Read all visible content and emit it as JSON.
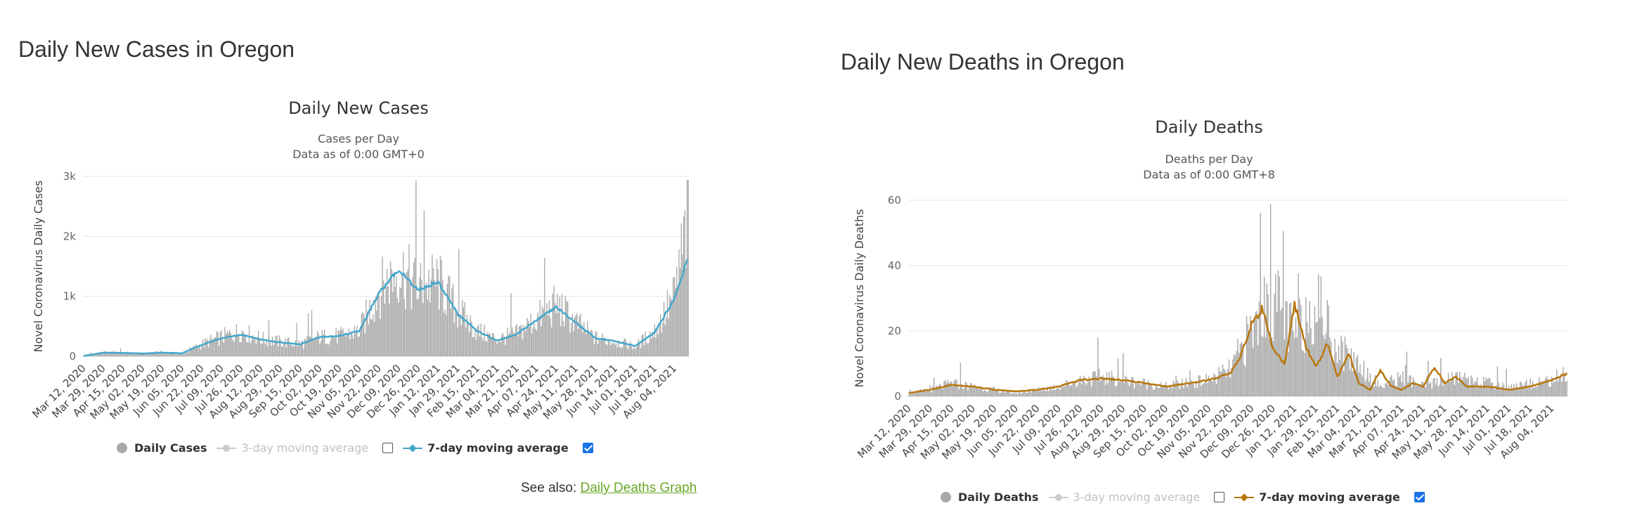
{
  "cases_panel": {
    "heading": "Daily New Cases in Oregon",
    "see_also_prefix": "See also:",
    "see_also_link": "Daily Deaths Graph",
    "legend": {
      "daily": "Daily Cases",
      "ma3": "3-day moving average",
      "ma7": "7-day moving average",
      "ma3_checked": false,
      "ma7_checked": true
    }
  },
  "deaths_panel": {
    "heading": "Daily New Deaths in Oregon",
    "legend": {
      "daily": "Daily Deaths",
      "ma3": "3-day moving average",
      "ma7": "7-day moving average",
      "ma3_checked": false,
      "ma7_checked": true
    }
  },
  "colors": {
    "bar": "#a8a8a8",
    "cases_line": "#44a7cb",
    "deaths_line": "#b8770e",
    "legend_disabled": "#cccccc",
    "grid": "#e6e6e6",
    "link": "#69a825"
  },
  "chart_data": [
    {
      "type": "bar",
      "title": "Daily New Cases",
      "subtitle": [
        "Cases per Day",
        "Data as of 0:00 GMT+0"
      ],
      "ylabel": "Novel Coronavirus Daily Cases",
      "xlabel": "",
      "ylim": [
        0,
        3000
      ],
      "yticks": [
        0,
        1000,
        2000,
        3000
      ],
      "ytick_labels": [
        "0",
        "1k",
        "2k",
        "3k"
      ],
      "grid": true,
      "legend_position": "bottom",
      "x_tick_labels": [
        "Mar 12, 2020",
        "Mar 29, 2020",
        "Apr 15, 2020",
        "May 02, 2020",
        "May 19, 2020",
        "Jun 05, 2020",
        "Jun 22, 2020",
        "Jul 09, 2020",
        "Jul 26, 2020",
        "Aug 12, 2020",
        "Aug 29, 2020",
        "Sep 15, 2020",
        "Oct 02, 2020",
        "Oct 19, 2020",
        "Nov 05, 2020",
        "Nov 22, 2020",
        "Dec 09, 2020",
        "Dec 26, 2020",
        "Jan 12, 2021",
        "Jan 29, 2021",
        "Feb 15, 2021",
        "Mar 04, 2021",
        "Mar 21, 2021",
        "Apr 07, 2021",
        "Apr 24, 2021",
        "May 11, 2021",
        "May 28, 2021",
        "Jun 14, 2021",
        "Jul 01, 2021",
        "Jul 18, 2021",
        "Aug 04, 2021"
      ],
      "series": [
        {
          "name": "Daily Cases",
          "kind": "bar",
          "anchors": [
            [
              0,
              5
            ],
            [
              17,
              60
            ],
            [
              34,
              55
            ],
            [
              51,
              45
            ],
            [
              68,
              65
            ],
            [
              85,
              45
            ],
            [
              102,
              200
            ],
            [
              119,
              320
            ],
            [
              136,
              420
            ],
            [
              153,
              290
            ],
            [
              170,
              240
            ],
            [
              187,
              210
            ],
            [
              204,
              320
            ],
            [
              221,
              340
            ],
            [
              238,
              420
            ],
            [
              255,
              1100
            ],
            [
              272,
              1450
            ],
            [
              289,
              1150
            ],
            [
              306,
              1250
            ],
            [
              323,
              750
            ],
            [
              340,
              420
            ],
            [
              357,
              280
            ],
            [
              374,
              380
            ],
            [
              391,
              620
            ],
            [
              408,
              850
            ],
            [
              425,
              560
            ],
            [
              442,
              300
            ],
            [
              459,
              250
            ],
            [
              476,
              160
            ],
            [
              493,
              420
            ],
            [
              510,
              1000
            ],
            [
              522,
              2300
            ]
          ]
        },
        {
          "name": "3-day moving average",
          "kind": "line",
          "visible": false,
          "values": []
        },
        {
          "name": "7-day moving average",
          "kind": "line",
          "anchors": [
            [
              0,
              5
            ],
            [
              17,
              60
            ],
            [
              34,
              55
            ],
            [
              51,
              45
            ],
            [
              68,
              60
            ],
            [
              85,
              50
            ],
            [
              102,
              190
            ],
            [
              119,
              300
            ],
            [
              136,
              360
            ],
            [
              153,
              280
            ],
            [
              170,
              230
            ],
            [
              187,
              200
            ],
            [
              204,
              320
            ],
            [
              221,
              340
            ],
            [
              238,
              420
            ],
            [
              255,
              1050
            ],
            [
              272,
              1450
            ],
            [
              289,
              1100
            ],
            [
              306,
              1250
            ],
            [
              323,
              700
            ],
            [
              340,
              420
            ],
            [
              357,
              260
            ],
            [
              374,
              370
            ],
            [
              391,
              600
            ],
            [
              408,
              820
            ],
            [
              425,
              560
            ],
            [
              442,
              300
            ],
            [
              459,
              250
            ],
            [
              476,
              170
            ],
            [
              493,
              400
            ],
            [
              510,
              960
            ],
            [
              522,
              1650
            ]
          ]
        }
      ]
    },
    {
      "type": "bar",
      "title": "Daily Deaths",
      "subtitle": [
        "Deaths per Day",
        "Data as of 0:00 GMT+8"
      ],
      "ylabel": "Novel Coronavirus Daily Deaths",
      "xlabel": "",
      "ylim": [
        0,
        60
      ],
      "yticks": [
        0,
        20,
        40,
        60
      ],
      "ytick_labels": [
        "0",
        "20",
        "40",
        "60"
      ],
      "grid": true,
      "legend_position": "bottom",
      "x_tick_labels": [
        "Mar 12, 2020",
        "Mar 29, 2020",
        "Apr 15, 2020",
        "May 02, 2020",
        "May 19, 2020",
        "Jun 05, 2020",
        "Jun 22, 2020",
        "Jul 09, 2020",
        "Jul 26, 2020",
        "Aug 12, 2020",
        "Aug 29, 2020",
        "Sep 15, 2020",
        "Oct 02, 2020",
        "Oct 19, 2020",
        "Nov 05, 2020",
        "Nov 22, 2020",
        "Dec 09, 2020",
        "Dec 26, 2020",
        "Jan 12, 2021",
        "Jan 29, 2021",
        "Feb 15, 2021",
        "Mar 04, 2021",
        "Mar 21, 2021",
        "Apr 07, 2021",
        "Apr 24, 2021",
        "May 11, 2021",
        "May 28, 2021",
        "Jun 14, 2021",
        "Jul 01, 2021",
        "Jul 18, 2021",
        "Aug 04, 2021"
      ],
      "series": [
        {
          "name": "Daily Deaths",
          "kind": "bar",
          "anchors": [
            [
              0,
              1
            ],
            [
              17,
              2
            ],
            [
              34,
              4
            ],
            [
              51,
              3
            ],
            [
              68,
              2
            ],
            [
              85,
              1
            ],
            [
              102,
              2
            ],
            [
              119,
              3
            ],
            [
              136,
              5
            ],
            [
              153,
              6
            ],
            [
              170,
              5
            ],
            [
              187,
              4
            ],
            [
              204,
              3
            ],
            [
              221,
              4
            ],
            [
              238,
              5
            ],
            [
              255,
              8
            ],
            [
              272,
              20
            ],
            [
              289,
              30
            ],
            [
              306,
              18
            ],
            [
              323,
              30
            ],
            [
              340,
              15
            ],
            [
              357,
              10
            ],
            [
              374,
              3
            ],
            [
              391,
              6
            ],
            [
              408,
              3
            ],
            [
              425,
              5
            ],
            [
              442,
              6
            ],
            [
              459,
              4
            ],
            [
              476,
              3
            ],
            [
              493,
              4
            ],
            [
              510,
              5
            ],
            [
              522,
              7
            ]
          ]
        },
        {
          "name": "3-day moving average",
          "kind": "line",
          "visible": false,
          "values": []
        },
        {
          "name": "7-day moving average",
          "kind": "line",
          "anchors": [
            [
              0,
              1
            ],
            [
              17,
              2
            ],
            [
              34,
              3.5
            ],
            [
              51,
              3
            ],
            [
              68,
              2
            ],
            [
              85,
              1.5
            ],
            [
              102,
              2
            ],
            [
              119,
              3
            ],
            [
              136,
              5
            ],
            [
              153,
              5.5
            ],
            [
              170,
              5
            ],
            [
              187,
              4
            ],
            [
              204,
              3
            ],
            [
              221,
              4
            ],
            [
              238,
              5
            ],
            [
              255,
              7
            ],
            [
              263,
              12
            ],
            [
              272,
              22
            ],
            [
              280,
              27
            ],
            [
              289,
              14
            ],
            [
              298,
              10
            ],
            [
              306,
              28
            ],
            [
              315,
              15
            ],
            [
              323,
              9
            ],
            [
              332,
              16
            ],
            [
              340,
              6
            ],
            [
              349,
              13
            ],
            [
              357,
              4
            ],
            [
              366,
              2
            ],
            [
              374,
              8
            ],
            [
              383,
              3
            ],
            [
              391,
              2
            ],
            [
              400,
              4
            ],
            [
              408,
              3
            ],
            [
              417,
              9
            ],
            [
              425,
              4
            ],
            [
              434,
              6
            ],
            [
              442,
              3
            ],
            [
              459,
              3
            ],
            [
              476,
              2
            ],
            [
              493,
              3
            ],
            [
              510,
              5
            ],
            [
              522,
              7
            ]
          ]
        }
      ]
    }
  ]
}
